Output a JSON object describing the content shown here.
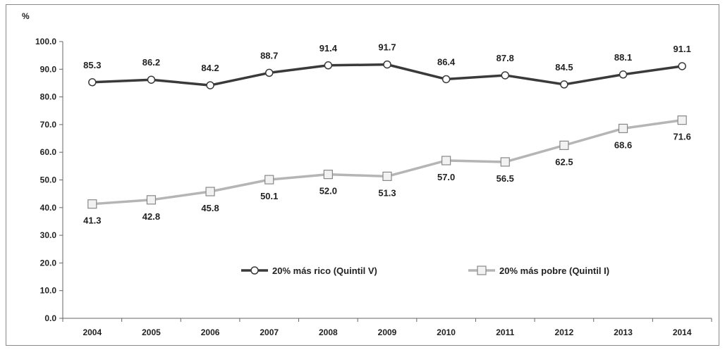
{
  "chart_data": {
    "type": "line",
    "ylabel": "%",
    "xlabel": "",
    "ylim": [
      0,
      100
    ],
    "yticks": [
      "0.0",
      "10.0",
      "20.0",
      "30.0",
      "40.0",
      "50.0",
      "60.0",
      "70.0",
      "80.0",
      "90.0",
      "100.0"
    ],
    "categories": [
      "2004",
      "2005",
      "2006",
      "2007",
      "2008",
      "2009",
      "2010",
      "2011",
      "2012",
      "2013",
      "2014"
    ],
    "grid": false,
    "legend_position": "inside-lower-center",
    "series": [
      {
        "name": "20% más rico (Quintil V)",
        "marker": "circle",
        "color": "#3a3a3a",
        "label_position": "above",
        "values": [
          85.3,
          86.2,
          84.2,
          88.7,
          91.4,
          91.7,
          86.4,
          87.8,
          84.5,
          88.1,
          91.1
        ],
        "labels": [
          "85.3",
          "86.2",
          "84.2",
          "88.7",
          "91.4",
          "91.7",
          "86.4",
          "87.8",
          "84.5",
          "88.1",
          "91.1"
        ]
      },
      {
        "name": "20% más pobre (Quintil I)",
        "marker": "square",
        "color": "#b5b5b5",
        "label_position": "below",
        "values": [
          41.3,
          42.8,
          45.8,
          50.1,
          52.0,
          51.3,
          57.0,
          56.5,
          62.5,
          68.6,
          71.6
        ],
        "labels": [
          "41.3",
          "42.8",
          "45.8",
          "50.1",
          "52.0",
          "51.3",
          "57.0",
          "56.5",
          "62.5",
          "68.6",
          "71.6"
        ]
      }
    ]
  }
}
